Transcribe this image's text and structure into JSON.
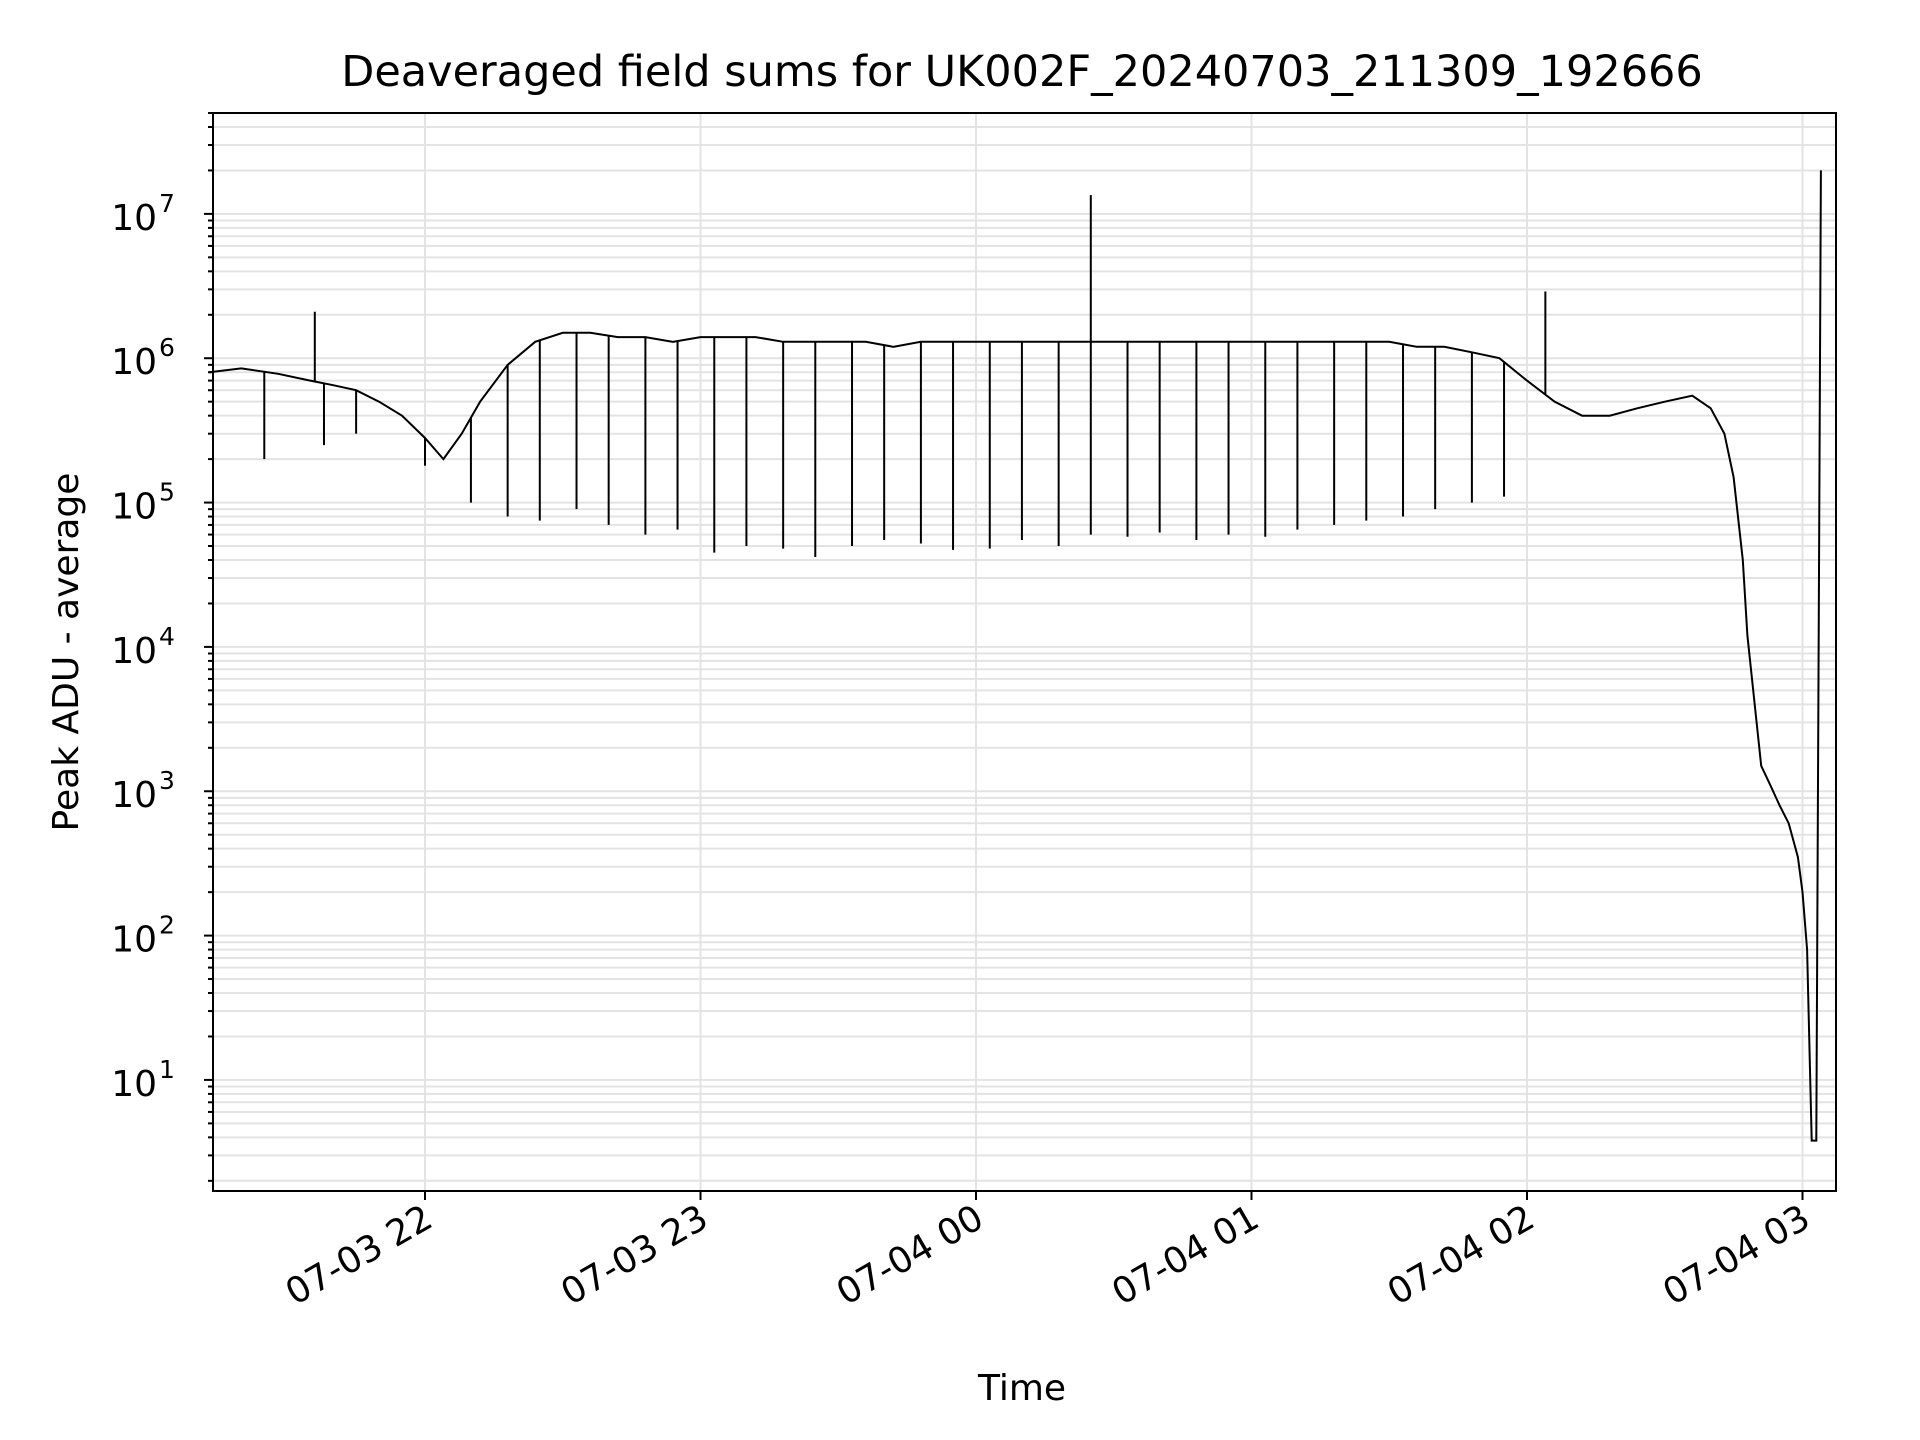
{
  "chart_data": {
    "type": "line",
    "title": "Deaveraged field sums for UK002F_20240703_211309_192666",
    "xlabel": "Time",
    "ylabel": "Peak ADU - average",
    "y_scale": "log",
    "grid": true,
    "legend": "none",
    "x_range": [
      "2024-07-03 21:13",
      "2024-07-04 03:04"
    ],
    "ylim": [
      1.7,
      50000000
    ],
    "x_tick_labels": [
      "07-03 22",
      "07-03 23",
      "07-04 00",
      "07-04 01",
      "07-04 02",
      "07-04 03"
    ],
    "y_tick_labels": [
      {
        "base": "10",
        "exp": "1"
      },
      {
        "base": "10",
        "exp": "2"
      },
      {
        "base": "10",
        "exp": "3"
      },
      {
        "base": "10",
        "exp": "4"
      },
      {
        "base": "10",
        "exp": "5"
      },
      {
        "base": "10",
        "exp": "6"
      },
      {
        "base": "10",
        "exp": "7"
      }
    ],
    "series": [
      {
        "color": "#000000",
        "x": [
          "21:13",
          "21:20",
          "21:28",
          "21:35",
          "21:40",
          "21:45",
          "21:50",
          "21:55",
          "22:00",
          "22:04",
          "22:08",
          "22:12",
          "22:18",
          "22:24",
          "22:30",
          "22:36",
          "22:42",
          "22:48",
          "22:54",
          "23:00",
          "23:06",
          "23:12",
          "23:18",
          "23:24",
          "23:30",
          "23:36",
          "23:42",
          "23:48",
          "23:54",
          "00:00",
          "00:06",
          "00:12",
          "00:18",
          "00:24",
          "00:30",
          "00:36",
          "00:42",
          "00:48",
          "00:54",
          "01:00",
          "01:06",
          "01:12",
          "01:18",
          "01:24",
          "01:30",
          "01:36",
          "01:42",
          "01:48",
          "01:54",
          "02:00",
          "02:06",
          "02:12",
          "02:18",
          "02:24",
          "02:30",
          "02:36",
          "02:40",
          "02:43",
          "02:45",
          "02:47",
          "02:48",
          "02:50",
          "02:51",
          "02:53",
          "02:55",
          "02:57",
          "02:59",
          "03:00",
          "03:01",
          "03:02",
          "03:03",
          "03:04"
        ],
        "y": [
          800000,
          850000,
          780000,
          700000,
          650000,
          600000,
          500000,
          400000,
          280000,
          200000,
          300000,
          500000,
          900000,
          1300000,
          1500000,
          1500000,
          1400000,
          1400000,
          1300000,
          1400000,
          1400000,
          1400000,
          1300000,
          1300000,
          1300000,
          1300000,
          1200000,
          1300000,
          1300000,
          1300000,
          1300000,
          1300000,
          1300000,
          1300000,
          1300000,
          1300000,
          1300000,
          1300000,
          1300000,
          1300000,
          1300000,
          1300000,
          1300000,
          1300000,
          1300000,
          1200000,
          1200000,
          1100000,
          1000000,
          700000,
          500000,
          400000,
          400000,
          450000,
          500000,
          550000,
          450000,
          300000,
          150000,
          40000,
          12000,
          3000,
          1500,
          1100,
          800,
          600,
          350,
          200,
          80,
          3.8,
          3.8,
          20000000
        ]
      }
    ],
    "annotated_lows": {
      "x": [
        "21:25",
        "21:38",
        "21:45",
        "22:00",
        "22:10",
        "22:18",
        "22:25",
        "22:33",
        "22:40",
        "22:48",
        "22:55",
        "23:03",
        "23:10",
        "23:18",
        "23:25",
        "23:33",
        "23:40",
        "23:48",
        "23:55",
        "00:03",
        "00:10",
        "00:18",
        "00:25",
        "00:33",
        "00:40",
        "00:48",
        "00:55",
        "01:03",
        "01:10",
        "01:18",
        "01:25",
        "01:33",
        "01:40",
        "01:48",
        "01:55"
      ],
      "y": [
        200000,
        250000,
        300000,
        180000,
        100000,
        80000,
        75000,
        90000,
        70000,
        60000,
        65000,
        45000,
        50000,
        48000,
        42000,
        50000,
        55000,
        52000,
        47000,
        48000,
        55000,
        50000,
        60000,
        58000,
        62000,
        55000,
        60000,
        58000,
        65000,
        70000,
        75000,
        80000,
        90000,
        100000,
        110000
      ]
    },
    "annotated_spikes": {
      "x": [
        "21:36",
        "00:25",
        "02:04"
      ],
      "y": [
        2100000,
        13500000,
        2900000
      ]
    }
  }
}
